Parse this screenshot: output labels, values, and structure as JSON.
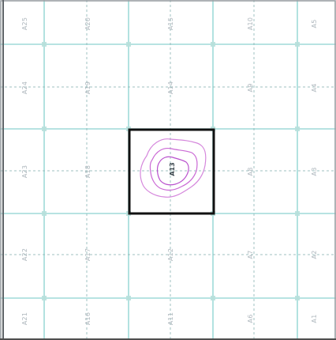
{
  "map": {
    "colors": {
      "grid": "#9fdad8",
      "dashes": "#8fb7b6",
      "label": "#aeb7bd",
      "selection": "#111111",
      "contour": "#c55ad0"
    },
    "grid": {
      "columns": 4,
      "rows": 4
    },
    "selected_tile": {
      "label": "A13",
      "row": 2,
      "col": 2
    },
    "labels": {
      "row1": [
        "A25",
        "A20",
        "A15",
        "A10",
        "A5"
      ],
      "row2": [
        "A24",
        "A19",
        "A14",
        "A9",
        "A4"
      ],
      "row3": [
        "A23",
        "A18",
        "A13",
        "A8",
        "A3"
      ],
      "row4": [
        "A22",
        "A17",
        "A12",
        "A7",
        "A2"
      ],
      "row5": [
        "A21",
        "A16",
        "A11",
        "A6",
        "A1"
      ]
    }
  }
}
